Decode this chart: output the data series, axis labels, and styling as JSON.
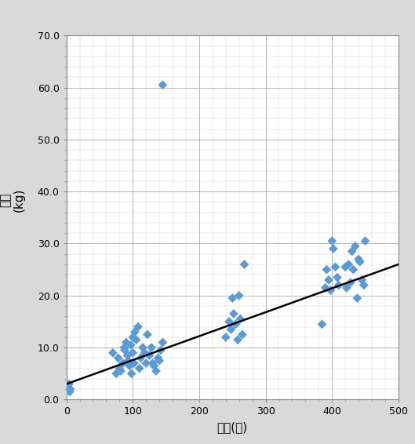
{
  "xlabel": "일령(일)",
  "xlim": [
    0,
    500
  ],
  "ylim": [
    0,
    70
  ],
  "xticks": [
    0,
    100,
    200,
    300,
    400,
    500
  ],
  "yticks": [
    0.0,
    10.0,
    20.0,
    30.0,
    40.0,
    50.0,
    60.0,
    70.0
  ],
  "scatter_color": "#5B9BD5",
  "trendline_color": "#000000",
  "scatter_x": [
    2,
    3,
    4,
    5,
    6,
    70,
    75,
    78,
    80,
    82,
    85,
    87,
    88,
    90,
    92,
    93,
    95,
    97,
    98,
    100,
    100,
    102,
    103,
    105,
    108,
    110,
    112,
    115,
    118,
    120,
    122,
    125,
    128,
    130,
    132,
    135,
    138,
    140,
    142,
    145,
    145,
    240,
    245,
    248,
    250,
    252,
    255,
    258,
    260,
    262,
    265,
    268,
    385,
    390,
    392,
    395,
    398,
    400,
    402,
    405,
    408,
    410,
    420,
    422,
    425,
    428,
    430,
    432,
    435,
    438,
    440,
    442,
    445,
    448,
    450
  ],
  "scatter_y": [
    2.5,
    2.0,
    3.0,
    1.5,
    2.0,
    9.0,
    5.0,
    8.0,
    6.0,
    5.5,
    7.0,
    10.0,
    9.5,
    11.0,
    8.5,
    7.5,
    6.5,
    10.5,
    5.0,
    9.0,
    12.0,
    7.0,
    13.0,
    11.5,
    14.0,
    6.0,
    8.0,
    10.0,
    9.0,
    7.0,
    12.5,
    8.5,
    10.0,
    7.0,
    6.5,
    5.5,
    8.0,
    7.5,
    9.5,
    11.0,
    60.5,
    12.0,
    15.0,
    13.5,
    19.5,
    16.5,
    14.5,
    11.5,
    20.0,
    15.5,
    12.5,
    26.0,
    14.5,
    21.5,
    25.0,
    23.0,
    21.0,
    30.5,
    29.0,
    25.5,
    23.5,
    22.0,
    25.5,
    21.5,
    26.0,
    22.5,
    28.5,
    25.0,
    29.5,
    19.5,
    27.0,
    26.5,
    23.0,
    22.0,
    30.5
  ],
  "trendline_x": [
    0,
    500
  ],
  "trendline_y": [
    3.0,
    26.0
  ],
  "marker_size": 36,
  "grid_major_color": "#AAAAAA",
  "grid_minor_color": "#CCCCCC",
  "outer_bg_color": "#D9D9D9",
  "inner_bg_color": "#FFFFFF",
  "tick_fontsize": 9,
  "label_fontsize": 11,
  "ylabel_text": "체중\n(kg)"
}
